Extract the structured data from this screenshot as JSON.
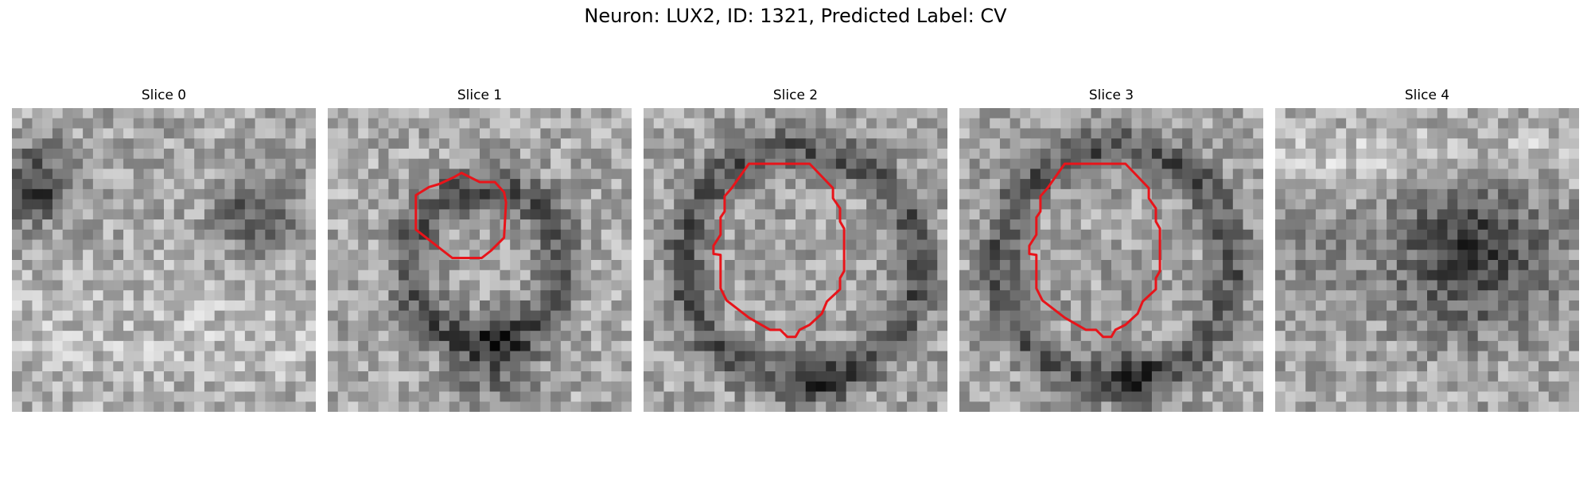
{
  "figure": {
    "title": "Neuron: LUX2, ID: 1321, Predicted Label: CV"
  },
  "panels": [
    {
      "title": "Slice 0",
      "contour": false,
      "pattern": "slice0"
    },
    {
      "title": "Slice 1",
      "contour": true,
      "pattern": "ring-small"
    },
    {
      "title": "Slice 2",
      "contour": true,
      "pattern": "ring-large"
    },
    {
      "title": "Slice 3",
      "contour": true,
      "pattern": "ring-large"
    },
    {
      "title": "Slice 4",
      "contour": false,
      "pattern": "blob-right"
    }
  ],
  "colors": {
    "contour": "#e8141a",
    "background": "#ffffff"
  }
}
